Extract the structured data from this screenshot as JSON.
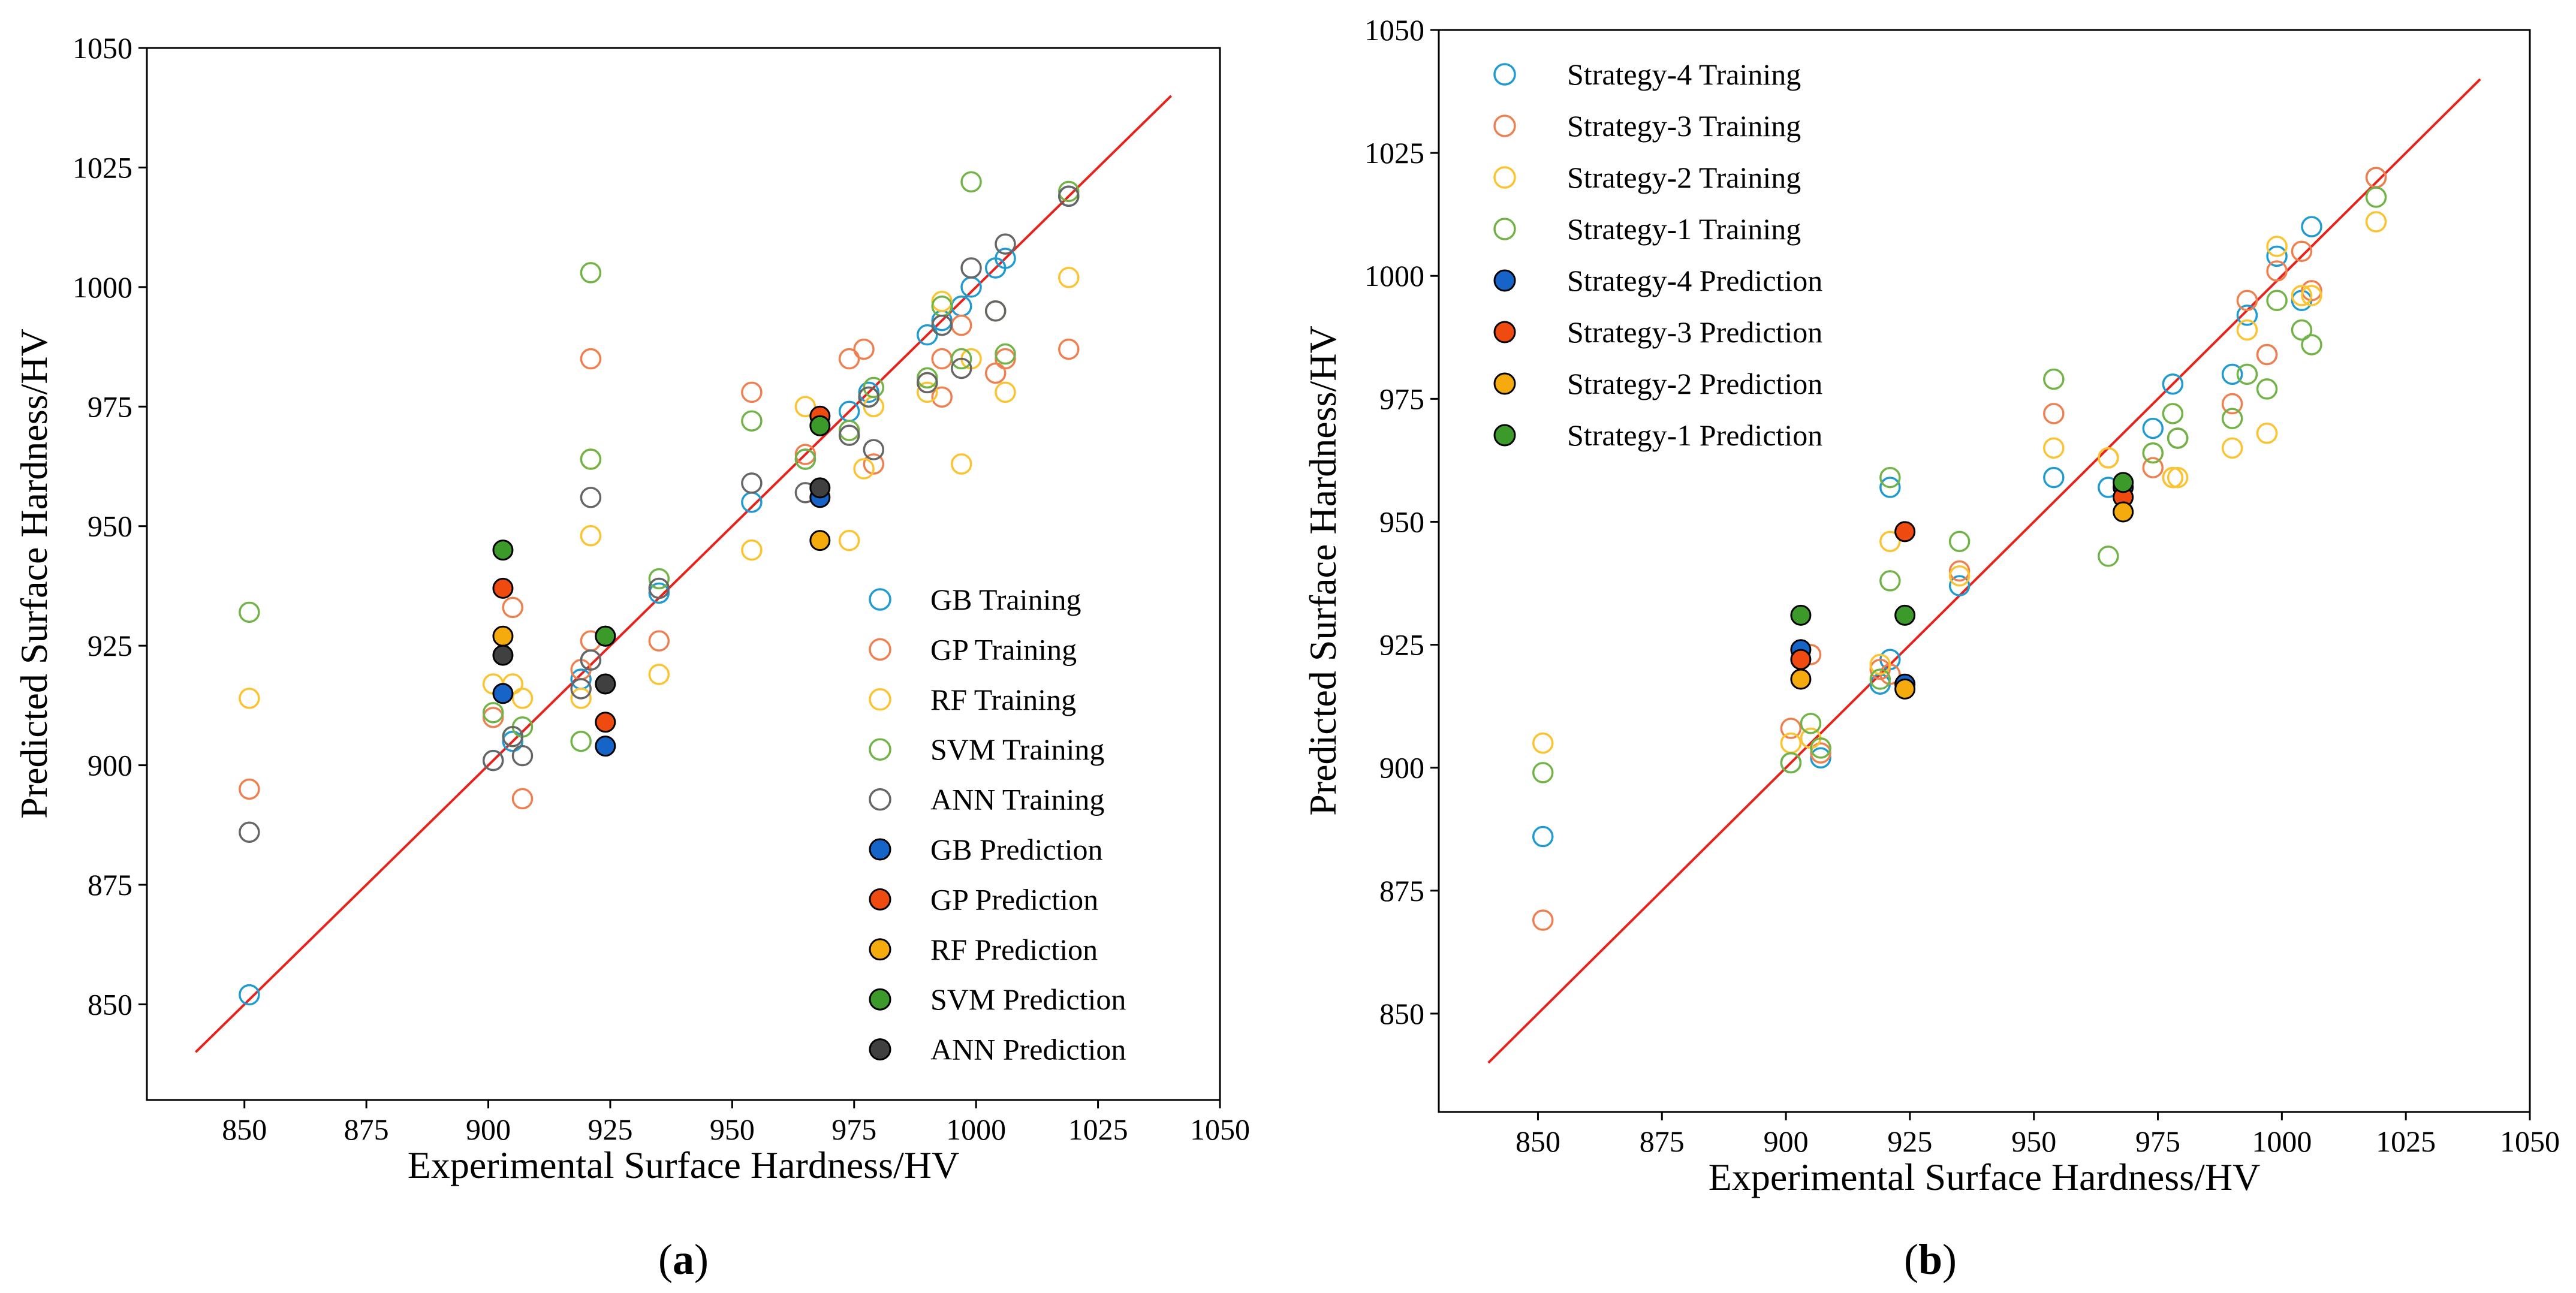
{
  "colors": {
    "GB": "#1f9bd1",
    "GP": "#f07f4f",
    "RF": "#fdc32f",
    "SVM": "#72b347",
    "ANN": "#666666",
    "GB_fill": "#1764c9",
    "GP_fill": "#ef4a10",
    "RF_fill": "#f5aa0d",
    "SVM_fill": "#3c9a2a",
    "ANN_fill": "#404040",
    "diag": "#e8211b",
    "axis": "#000000"
  },
  "chart_data": [
    {
      "panel_label": {
        "open": "(",
        "letter": "a",
        "close": ")"
      },
      "type": "scatter",
      "xlabel": "Experimental Surface Hardness/HV",
      "ylabel": "Predicted Surface Hardness/HV",
      "xlim": [
        830,
        1050
      ],
      "ylim": [
        830,
        1050
      ],
      "xticks": [
        850,
        875,
        900,
        925,
        950,
        975,
        1000,
        1025,
        1050
      ],
      "yticks": [
        850,
        875,
        900,
        925,
        950,
        975,
        1000,
        1025,
        1050
      ],
      "xtick_labels": [
        "850",
        "875",
        "900",
        "925",
        "950",
        "975",
        "1000",
        "1025",
        "1050"
      ],
      "ytick_labels": [
        "850",
        "875",
        "900",
        "925",
        "950",
        "975",
        "1000",
        "1025",
        "1050"
      ],
      "legend_position": "lower-right",
      "diagonal": {
        "from": [
          840,
          840
        ],
        "to": [
          1040,
          1040
        ]
      },
      "series": [
        {
          "name": "GB Training",
          "kind": "training",
          "color_key": "GB",
          "points": [
            [
              851,
              852
            ],
            [
              901,
              901
            ],
            [
              905,
              905
            ],
            [
              919,
              918
            ],
            [
              921,
              922
            ],
            [
              935,
              936
            ],
            [
              954,
              955
            ],
            [
              965,
              964
            ],
            [
              974,
              974
            ],
            [
              978,
              978
            ],
            [
              990,
              990
            ],
            [
              993,
              993
            ],
            [
              997,
              996
            ],
            [
              999,
              1000
            ],
            [
              1004,
              1004
            ],
            [
              1006,
              1006
            ],
            [
              1019,
              1019
            ]
          ]
        },
        {
          "name": "GP Training",
          "kind": "training",
          "color_key": "GP",
          "points": [
            [
              851,
              895
            ],
            [
              901,
              910
            ],
            [
              905,
              933
            ],
            [
              907,
              893
            ],
            [
              919,
              920
            ],
            [
              921,
              926
            ],
            [
              921,
              985
            ],
            [
              935,
              926
            ],
            [
              954,
              978
            ],
            [
              965,
              965
            ],
            [
              974,
              985
            ],
            [
              977,
              987
            ],
            [
              979,
              963
            ],
            [
              990,
              980
            ],
            [
              993,
              985
            ],
            [
              993,
              977
            ],
            [
              997,
              992
            ],
            [
              1004,
              982
            ],
            [
              1006,
              985
            ],
            [
              1019,
              987
            ]
          ]
        },
        {
          "name": "RF Training",
          "kind": "training",
          "color_key": "RF",
          "points": [
            [
              851,
              914
            ],
            [
              901,
              917
            ],
            [
              905,
              917
            ],
            [
              907,
              914
            ],
            [
              919,
              914
            ],
            [
              921,
              948
            ],
            [
              921,
              964
            ],
            [
              935,
              919
            ],
            [
              954,
              945
            ],
            [
              965,
              975
            ],
            [
              974,
              947
            ],
            [
              977,
              962
            ],
            [
              979,
              975
            ],
            [
              990,
              978
            ],
            [
              993,
              997
            ],
            [
              997,
              963
            ],
            [
              999,
              985
            ],
            [
              1004,
              995
            ],
            [
              1006,
              978
            ],
            [
              1019,
              1002
            ]
          ]
        },
        {
          "name": "SVM Training",
          "kind": "training",
          "color_key": "SVM",
          "points": [
            [
              851,
              932
            ],
            [
              901,
              911
            ],
            [
              905,
              906
            ],
            [
              907,
              908
            ],
            [
              919,
              905
            ],
            [
              921,
              1003
            ],
            [
              921,
              964
            ],
            [
              935,
              939
            ],
            [
              954,
              972
            ],
            [
              965,
              964
            ],
            [
              974,
              970
            ],
            [
              978,
              977
            ],
            [
              979,
              979
            ],
            [
              990,
              981
            ],
            [
              993,
              996
            ],
            [
              997,
              985
            ],
            [
              999,
              1022
            ],
            [
              1004,
              995
            ],
            [
              1006,
              986
            ],
            [
              1019,
              1020
            ]
          ]
        },
        {
          "name": "ANN Training",
          "kind": "training",
          "color_key": "ANN",
          "points": [
            [
              851,
              886
            ],
            [
              901,
              901
            ],
            [
              905,
              906
            ],
            [
              907,
              902
            ],
            [
              919,
              916
            ],
            [
              921,
              922
            ],
            [
              921,
              956
            ],
            [
              935,
              937
            ],
            [
              954,
              959
            ],
            [
              965,
              957
            ],
            [
              974,
              969
            ],
            [
              978,
              977
            ],
            [
              979,
              966
            ],
            [
              990,
              980
            ],
            [
              993,
              992
            ],
            [
              997,
              983
            ],
            [
              999,
              1004
            ],
            [
              1004,
              995
            ],
            [
              1006,
              1009
            ],
            [
              1019,
              1019
            ]
          ]
        },
        {
          "name": "GB Prediction",
          "kind": "prediction",
          "color_key": "GB",
          "points": [
            [
              903,
              915
            ],
            [
              924,
              904
            ],
            [
              968,
              956
            ]
          ]
        },
        {
          "name": "GP Prediction",
          "kind": "prediction",
          "color_key": "GP",
          "points": [
            [
              903,
              937
            ],
            [
              924,
              909
            ],
            [
              968,
              973
            ]
          ]
        },
        {
          "name": "RF Prediction",
          "kind": "prediction",
          "color_key": "RF",
          "points": [
            [
              903,
              927
            ],
            [
              924,
              927
            ],
            [
              968,
              947
            ]
          ]
        },
        {
          "name": "SVM Prediction",
          "kind": "prediction",
          "color_key": "SVM",
          "points": [
            [
              903,
              945
            ],
            [
              924,
              927
            ],
            [
              968,
              971
            ]
          ]
        },
        {
          "name": "ANN Prediction",
          "kind": "prediction",
          "color_key": "ANN",
          "points": [
            [
              903,
              923
            ],
            [
              924,
              917
            ],
            [
              968,
              958
            ]
          ]
        }
      ]
    },
    {
      "panel_label": {
        "open": "(",
        "letter": "b",
        "close": ")"
      },
      "type": "scatter",
      "xlabel": "Experimental Surface Hardness/HV",
      "ylabel": "Predicted Surface Hardness/HV",
      "xlim": [
        830,
        1050
      ],
      "ylim": [
        830,
        1050
      ],
      "xticks": [
        850,
        875,
        900,
        925,
        950,
        975,
        1000,
        1025,
        1050
      ],
      "yticks": [
        850,
        875,
        900,
        925,
        950,
        975,
        1000,
        1025,
        1050
      ],
      "xtick_labels": [
        "850",
        "875",
        "900",
        "925",
        "950",
        "975",
        "1000",
        "1025",
        "1050"
      ],
      "ytick_labels": [
        "850",
        "875",
        "900",
        "925",
        "950",
        "975",
        "1000",
        "1025",
        "1050"
      ],
      "legend_position": "upper-left",
      "diagonal": {
        "from": [
          840,
          840
        ],
        "to": [
          1040,
          1040
        ]
      },
      "series": [
        {
          "name": "Strategy-4 Training",
          "kind": "training",
          "color_key": "GB",
          "points": [
            [
              851,
              886
            ],
            [
              901,
              901
            ],
            [
              905,
              906
            ],
            [
              907,
              902
            ],
            [
              919,
              917
            ],
            [
              921,
              922
            ],
            [
              921,
              957
            ],
            [
              935,
              937
            ],
            [
              954,
              959
            ],
            [
              965,
              957
            ],
            [
              974,
              969
            ],
            [
              978,
              978
            ],
            [
              979,
              967
            ],
            [
              990,
              980
            ],
            [
              993,
              992
            ],
            [
              997,
              984
            ],
            [
              999,
              1004
            ],
            [
              1004,
              995
            ],
            [
              1006,
              1010
            ],
            [
              1019,
              1020
            ]
          ]
        },
        {
          "name": "Strategy-3 Training",
          "kind": "training",
          "color_key": "GP",
          "points": [
            [
              851,
              869
            ],
            [
              901,
              908
            ],
            [
              905,
              923
            ],
            [
              907,
              903
            ],
            [
              919,
              920
            ],
            [
              921,
              919
            ],
            [
              935,
              940
            ],
            [
              954,
              972
            ],
            [
              965,
              963
            ],
            [
              974,
              961
            ],
            [
              978,
              959
            ],
            [
              979,
              967
            ],
            [
              990,
              974
            ],
            [
              993,
              995
            ],
            [
              997,
              984
            ],
            [
              999,
              1001
            ],
            [
              1004,
              1005
            ],
            [
              1006,
              997
            ],
            [
              1019,
              1020
            ]
          ]
        },
        {
          "name": "Strategy-2 Training",
          "kind": "training",
          "color_key": "RF",
          "points": [
            [
              851,
              905
            ],
            [
              901,
              905
            ],
            [
              905,
              906
            ],
            [
              907,
              904
            ],
            [
              919,
              921
            ],
            [
              921,
              946
            ],
            [
              935,
              939
            ],
            [
              954,
              965
            ],
            [
              965,
              963
            ],
            [
              974,
              964
            ],
            [
              978,
              959
            ],
            [
              979,
              959
            ],
            [
              990,
              965
            ],
            [
              993,
              989
            ],
            [
              997,
              968
            ],
            [
              999,
              1006
            ],
            [
              1004,
              996
            ],
            [
              1006,
              996
            ],
            [
              1019,
              1011
            ]
          ]
        },
        {
          "name": "Strategy-1 Training",
          "kind": "training",
          "color_key": "SVM",
          "points": [
            [
              851,
              899
            ],
            [
              901,
              901
            ],
            [
              905,
              909
            ],
            [
              907,
              904
            ],
            [
              919,
              918
            ],
            [
              921,
              938
            ],
            [
              921,
              959
            ],
            [
              935,
              946
            ],
            [
              954,
              979
            ],
            [
              965,
              943
            ],
            [
              974,
              964
            ],
            [
              978,
              972
            ],
            [
              979,
              967
            ],
            [
              990,
              971
            ],
            [
              993,
              980
            ],
            [
              997,
              977
            ],
            [
              999,
              995
            ],
            [
              1004,
              989
            ],
            [
              1006,
              986
            ],
            [
              1019,
              1016
            ]
          ]
        },
        {
          "name": "Strategy-4 Prediction",
          "kind": "prediction",
          "color_key": "GB",
          "points": [
            [
              903,
              924
            ],
            [
              924,
              917
            ],
            [
              968,
              957
            ]
          ]
        },
        {
          "name": "Strategy-3 Prediction",
          "kind": "prediction",
          "color_key": "GP",
          "points": [
            [
              903,
              922
            ],
            [
              924,
              948
            ],
            [
              968,
              955
            ]
          ]
        },
        {
          "name": "Strategy-2 Prediction",
          "kind": "prediction",
          "color_key": "RF",
          "points": [
            [
              903,
              918
            ],
            [
              924,
              916
            ],
            [
              968,
              952
            ]
          ]
        },
        {
          "name": "Strategy-1 Prediction",
          "kind": "prediction",
          "color_key": "SVM",
          "points": [
            [
              903,
              931
            ],
            [
              924,
              931
            ],
            [
              968,
              958
            ]
          ]
        }
      ]
    }
  ]
}
